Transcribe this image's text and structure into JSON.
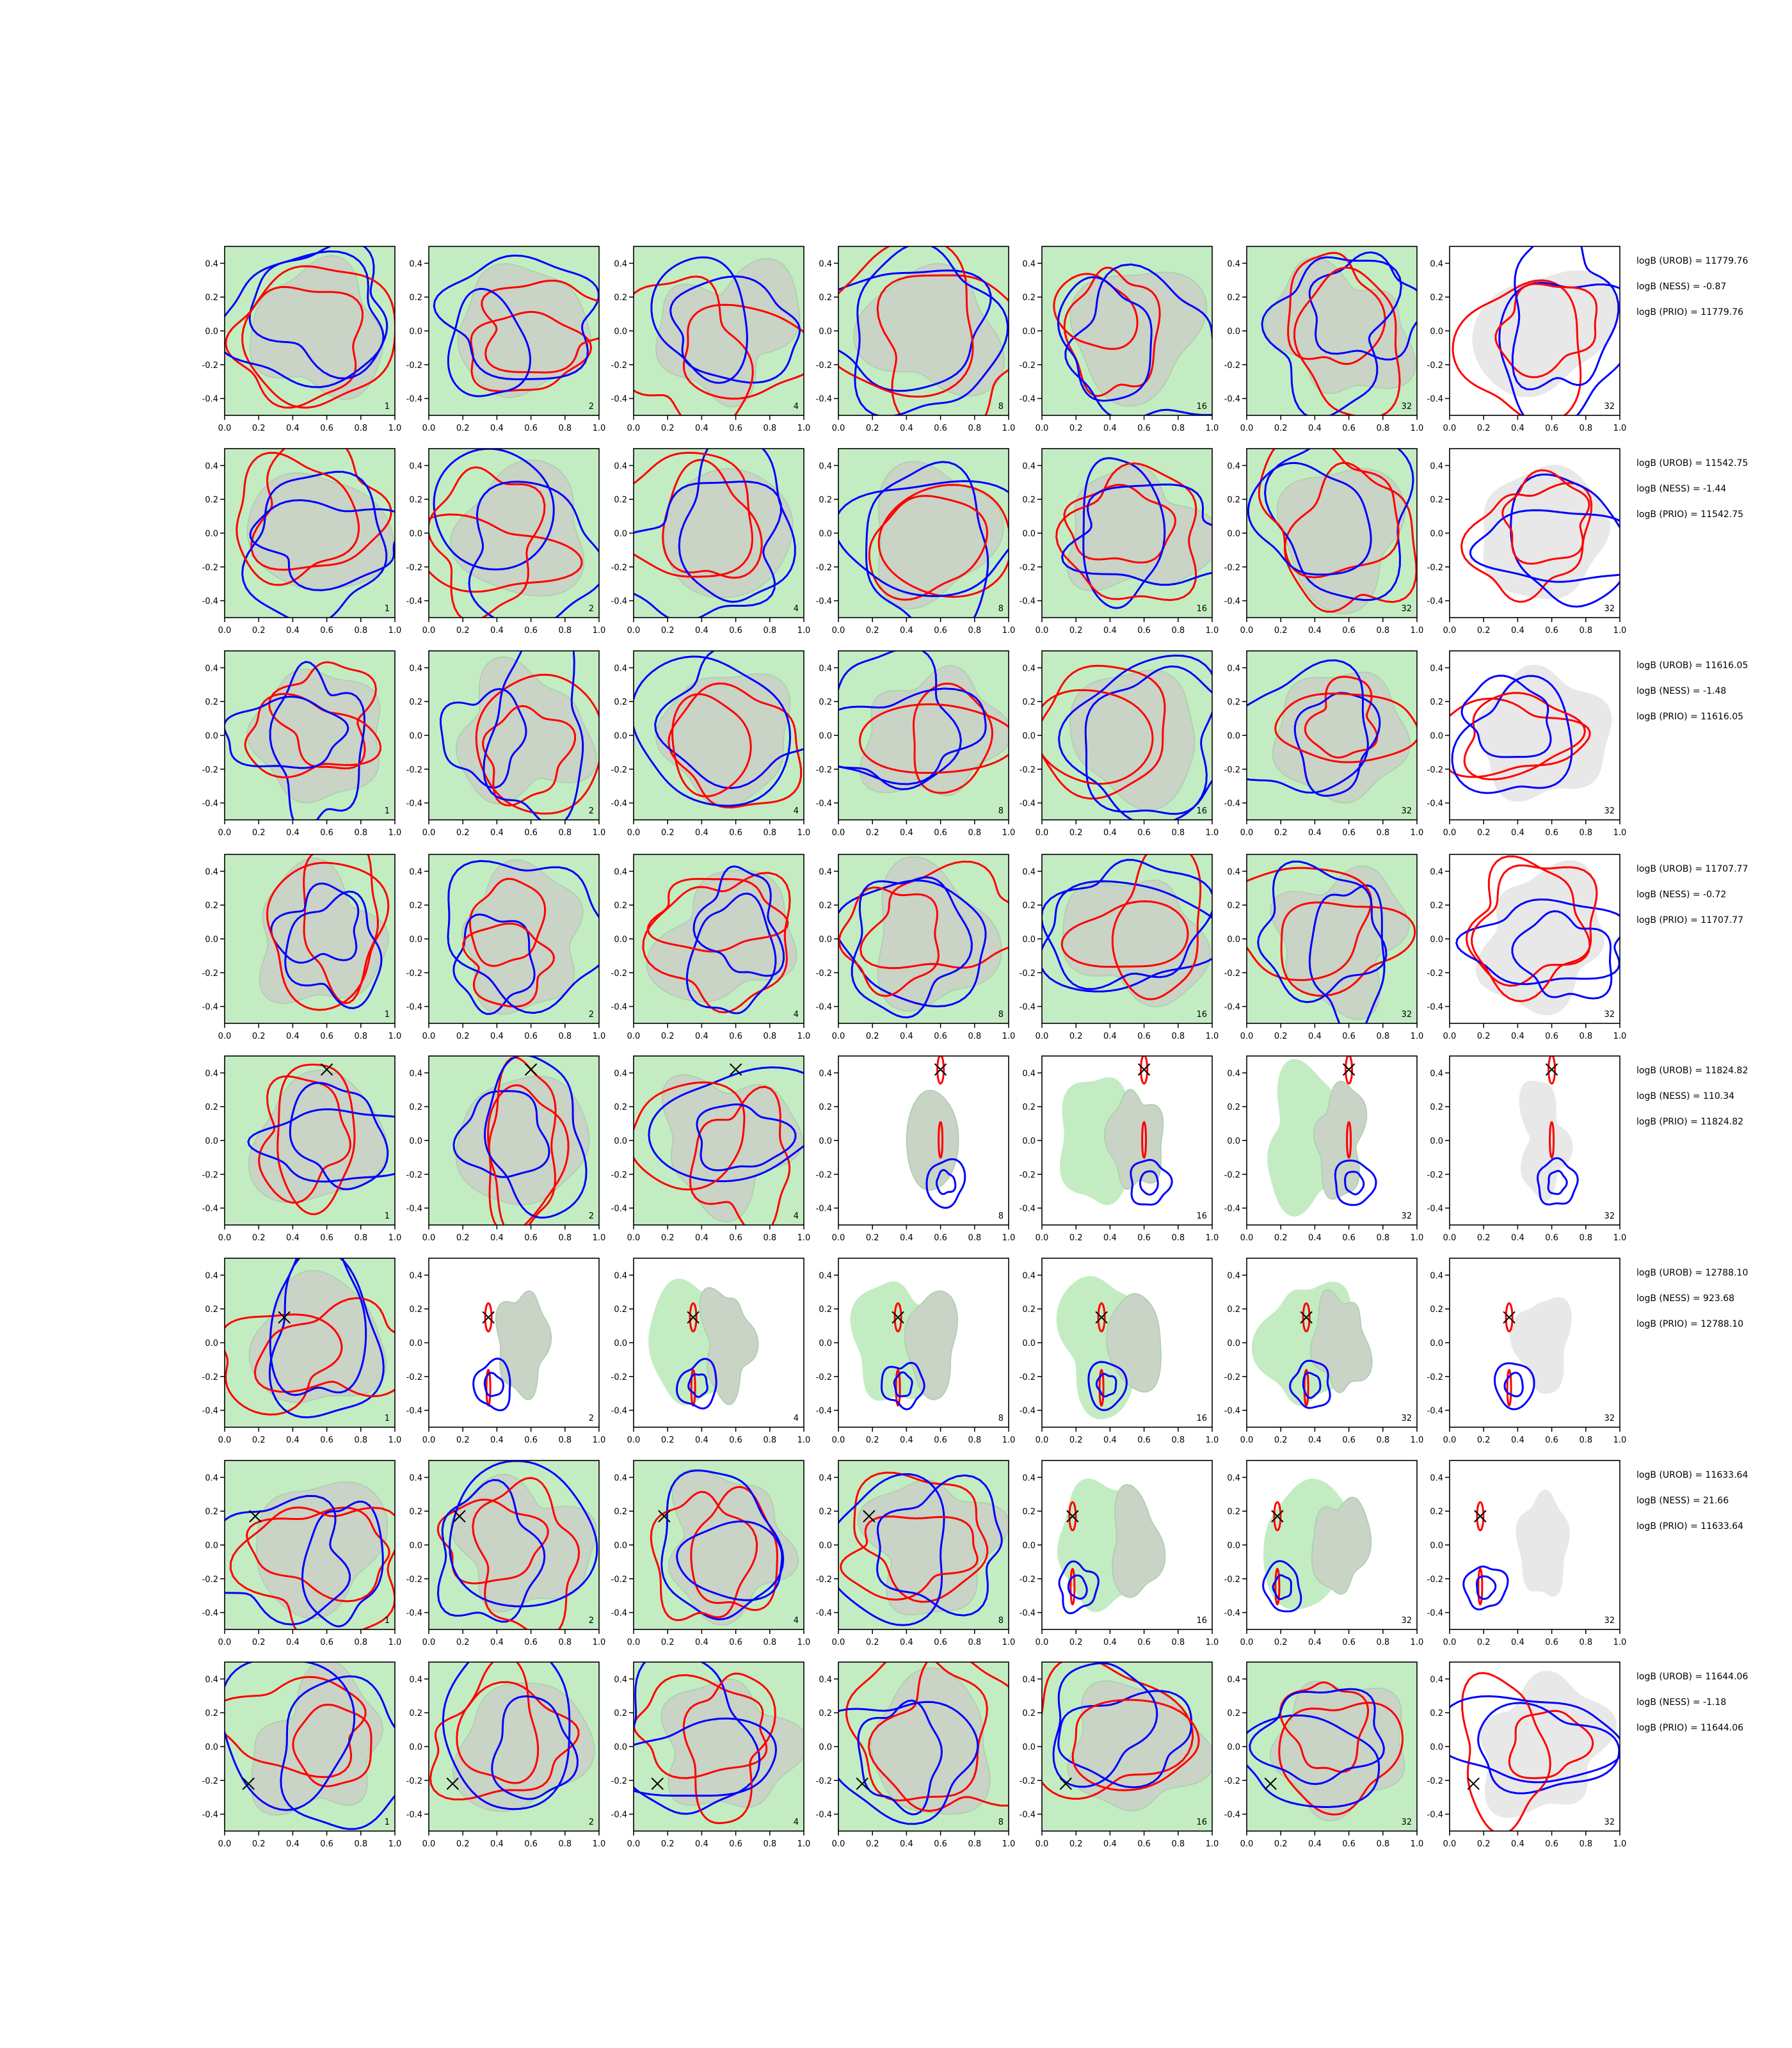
{
  "chart_data": {
    "type": "contour-grid",
    "xlim": [
      0.0,
      1.0
    ],
    "ylim": [
      -0.5,
      0.5
    ],
    "xticks": [
      "0.0",
      "0.2",
      "0.4",
      "0.6",
      "0.8",
      "1.0"
    ],
    "yticks": [
      "-0.4",
      "-0.2",
      "0.0",
      "0.2",
      "0.4"
    ],
    "column_labels": [
      "1",
      "2",
      "4",
      "8",
      "16",
      "32",
      "32"
    ],
    "colors": {
      "red_contour": "#ff0000",
      "blue_contour": "#0000ff",
      "green_fill": "#c3ecc3",
      "gray_fill": "#c9d3c6",
      "light_gray_fill": "#e8e8e8",
      "marker": "#000000"
    },
    "rows": [
      {
        "marker": null,
        "concentrated_from_col": null,
        "annotations": [
          "logB (UROB) = 11779.76",
          "logB (NESS) = -0.87",
          "logB (PRIO) = 11779.76"
        ]
      },
      {
        "marker": null,
        "concentrated_from_col": null,
        "annotations": [
          "logB (UROB) = 11542.75",
          "logB (NESS) = -1.44",
          "logB (PRIO) = 11542.75"
        ]
      },
      {
        "marker": null,
        "concentrated_from_col": null,
        "annotations": [
          "logB (UROB) = 11616.05",
          "logB (NESS) = -1.48",
          "logB (PRIO) = 11616.05"
        ]
      },
      {
        "marker": null,
        "concentrated_from_col": null,
        "annotations": [
          "logB (UROB) = 11707.77",
          "logB (NESS) = -0.72",
          "logB (PRIO) = 11707.77"
        ]
      },
      {
        "marker": [
          0.6,
          0.42
        ],
        "concentrated_from_col": 3,
        "annotations": [
          "logB (UROB) = 11824.82",
          "logB (NESS) = 110.34",
          "logB (PRIO) = 11824.82"
        ]
      },
      {
        "marker": [
          0.35,
          0.15
        ],
        "concentrated_from_col": 1,
        "annotations": [
          "logB (UROB) = 12788.10",
          "logB (NESS) = 923.68",
          "logB (PRIO) = 12788.10"
        ]
      },
      {
        "marker": [
          0.18,
          0.17
        ],
        "concentrated_from_col": 4,
        "annotations": [
          "logB (UROB) = 11633.64",
          "logB (NESS) = 21.66",
          "logB (PRIO) = 11633.64"
        ]
      },
      {
        "marker": [
          0.14,
          -0.22
        ],
        "concentrated_from_col": null,
        "annotations": [
          "logB (UROB) = 11644.06",
          "logB (NESS) = -1.18",
          "logB (PRIO) = 11644.06"
        ]
      }
    ]
  }
}
